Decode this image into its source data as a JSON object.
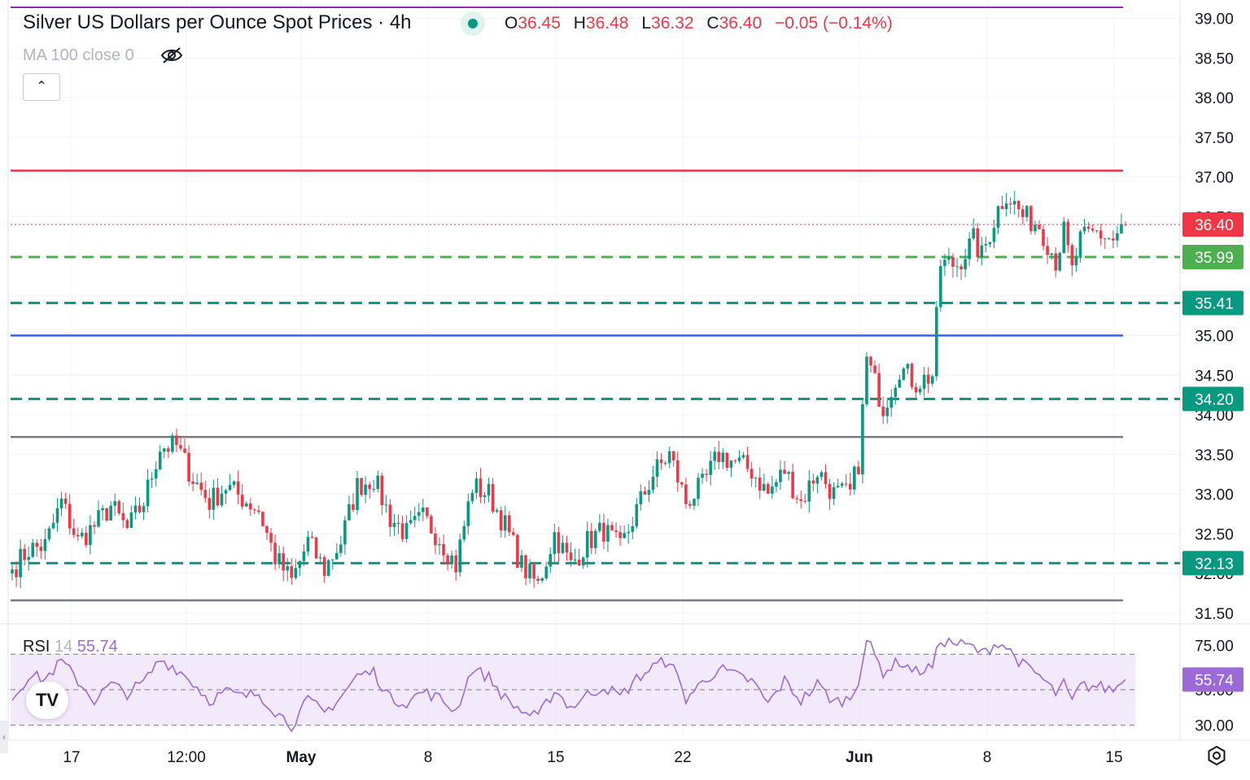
{
  "header": {
    "title": "Silver US Dollars per Ounce Spot Prices · 4h",
    "ohlc": {
      "o_label": "O",
      "o": "36.45",
      "h_label": "H",
      "h": "36.48",
      "l_label": "L",
      "l": "36.32",
      "c_label": "C",
      "c": "36.40",
      "change": "−0.05 (−0.14%)"
    },
    "indicator": "MA 100 close 0",
    "status_icon": "market-open-dot",
    "visibility_icon": "eye-off-icon",
    "collapse_icon": "chevron-up-icon"
  },
  "rsi_header": {
    "name": "RSI",
    "period": "14",
    "value": "55.74"
  },
  "footer": {
    "logo": "TV",
    "settings_icon": "gear-icon",
    "handle_icon": "chevron-left-icon"
  },
  "colors": {
    "up": "#089981",
    "down": "#f23645",
    "resistance": "#f23645",
    "pivot": "#2962ff",
    "range": "#787b86",
    "green_level": "#4caf50",
    "teal_level": "#089981",
    "top_line": "#9c27b0",
    "rsi": "#9c6ad6",
    "rsi_band": "#ede3f9",
    "last_price": "#f23645"
  },
  "chart_data": [
    {
      "type": "candlestick",
      "title": "Silver US Dollars per Ounce Spot Prices · 4h",
      "x_ticks": [
        "17",
        "12:00",
        "May",
        "8",
        "15",
        "22",
        "Jun",
        "8",
        "15"
      ],
      "y_ticks": [
        "31.50",
        "32.00",
        "32.50",
        "33.00",
        "33.50",
        "34.00",
        "34.50",
        "35.00",
        "35.50",
        "36.00",
        "36.50",
        "37.00",
        "37.50",
        "38.00",
        "38.50",
        "39.00"
      ],
      "ylim": [
        31.4,
        39.1
      ],
      "grid": true,
      "last_price": {
        "value": 36.4,
        "label": "36.40"
      },
      "horizontal_levels": [
        {
          "value": 37.08,
          "style": "solid",
          "color": "#f23645"
        },
        {
          "value": 35.99,
          "label": "35.99",
          "style": "dashed",
          "color": "#4caf50"
        },
        {
          "value": 35.41,
          "label": "35.41",
          "style": "dashed",
          "color": "#089981"
        },
        {
          "value": 35.0,
          "style": "solid",
          "color": "#2962ff"
        },
        {
          "value": 34.2,
          "label": "34.20",
          "style": "dashed",
          "color": "#089981"
        },
        {
          "value": 33.72,
          "style": "solid",
          "color": "#787b86"
        },
        {
          "value": 32.13,
          "label": "32.13",
          "style": "dashed",
          "color": "#089981"
        },
        {
          "value": 31.66,
          "style": "solid",
          "color": "#787b86"
        },
        {
          "value": 39.12,
          "style": "solid",
          "color": "#9c27b0"
        }
      ],
      "anchors": [
        [
          0,
          32.05
        ],
        [
          4,
          32.3
        ],
        [
          8,
          32.35
        ],
        [
          12,
          32.9
        ],
        [
          16,
          32.4
        ],
        [
          20,
          32.6
        ],
        [
          24,
          32.85
        ],
        [
          28,
          32.55
        ],
        [
          32,
          32.9
        ],
        [
          36,
          33.6
        ],
        [
          40,
          33.6
        ],
        [
          44,
          33.2
        ],
        [
          48,
          32.9
        ],
        [
          52,
          33.1
        ],
        [
          56,
          32.95
        ],
        [
          60,
          32.8
        ],
        [
          64,
          32.2
        ],
        [
          68,
          31.9
        ],
        [
          72,
          32.4
        ],
        [
          76,
          32.05
        ],
        [
          80,
          32.4
        ],
        [
          84,
          33.1
        ],
        [
          88,
          33.2
        ],
        [
          92,
          32.7
        ],
        [
          96,
          32.5
        ],
        [
          100,
          32.7
        ],
        [
          104,
          32.45
        ],
        [
          108,
          32.1
        ],
        [
          112,
          33.1
        ],
        [
          116,
          33.0
        ],
        [
          120,
          32.6
        ],
        [
          124,
          32.1
        ],
        [
          128,
          31.85
        ],
        [
          132,
          32.5
        ],
        [
          136,
          32.1
        ],
        [
          140,
          32.4
        ],
        [
          144,
          32.55
        ],
        [
          148,
          32.3
        ],
        [
          152,
          32.8
        ],
        [
          156,
          33.25
        ],
        [
          160,
          33.5
        ],
        [
          164,
          32.9
        ],
        [
          168,
          33.1
        ],
        [
          172,
          33.5
        ],
        [
          176,
          33.4
        ],
        [
          180,
          33.3
        ],
        [
          184,
          33.0
        ],
        [
          188,
          33.3
        ],
        [
          192,
          32.9
        ],
        [
          196,
          33.3
        ],
        [
          200,
          33.0
        ],
        [
          204,
          33.0
        ],
        [
          206,
          33.4
        ],
        [
          208,
          34.7
        ],
        [
          212,
          34.1
        ],
        [
          216,
          34.6
        ],
        [
          220,
          34.4
        ],
        [
          224,
          34.5
        ],
        [
          226,
          35.9
        ],
        [
          230,
          35.9
        ],
        [
          234,
          36.2
        ],
        [
          236,
          36.0
        ],
        [
          240,
          36.6
        ],
        [
          242,
          36.8
        ],
        [
          246,
          36.5
        ],
        [
          250,
          36.4
        ],
        [
          254,
          35.95
        ],
        [
          256,
          36.3
        ],
        [
          258,
          35.8
        ],
        [
          260,
          36.2
        ],
        [
          264,
          36.3
        ],
        [
          268,
          36.2
        ],
        [
          271,
          36.4
        ]
      ]
    },
    {
      "type": "line",
      "name": "RSI 14",
      "y_ticks": [
        "30.00",
        "50.00",
        "75.00"
      ],
      "ylim": [
        20,
        80
      ],
      "levels": [
        70,
        50,
        30
      ],
      "last_value": {
        "value": 55.74,
        "label": "55.74"
      },
      "anchors": [
        [
          0,
          45
        ],
        [
          4,
          58
        ],
        [
          8,
          56
        ],
        [
          12,
          66
        ],
        [
          16,
          55
        ],
        [
          20,
          44
        ],
        [
          24,
          53
        ],
        [
          28,
          48
        ],
        [
          32,
          54
        ],
        [
          36,
          67
        ],
        [
          40,
          62
        ],
        [
          44,
          54
        ],
        [
          48,
          44
        ],
        [
          52,
          49
        ],
        [
          56,
          46
        ],
        [
          60,
          48
        ],
        [
          64,
          38
        ],
        [
          68,
          30
        ],
        [
          72,
          44
        ],
        [
          76,
          37
        ],
        [
          80,
          46
        ],
        [
          84,
          58
        ],
        [
          88,
          60
        ],
        [
          92,
          45
        ],
        [
          96,
          43
        ],
        [
          100,
          49
        ],
        [
          104,
          45
        ],
        [
          108,
          38
        ],
        [
          112,
          62
        ],
        [
          116,
          57
        ],
        [
          120,
          45
        ],
        [
          124,
          38
        ],
        [
          128,
          34
        ],
        [
          132,
          50
        ],
        [
          136,
          40
        ],
        [
          140,
          47
        ],
        [
          144,
          52
        ],
        [
          148,
          46
        ],
        [
          152,
          56
        ],
        [
          156,
          63
        ],
        [
          160,
          67
        ],
        [
          164,
          45
        ],
        [
          168,
          54
        ],
        [
          172,
          62
        ],
        [
          176,
          58
        ],
        [
          180,
          55
        ],
        [
          184,
          42
        ],
        [
          188,
          55
        ],
        [
          192,
          44
        ],
        [
          196,
          53
        ],
        [
          200,
          43
        ],
        [
          204,
          45
        ],
        [
          206,
          56
        ],
        [
          208,
          78
        ],
        [
          212,
          60
        ],
        [
          216,
          66
        ],
        [
          220,
          60
        ],
        [
          224,
          63
        ],
        [
          226,
          78
        ],
        [
          230,
          76
        ],
        [
          234,
          74
        ],
        [
          236,
          70
        ],
        [
          240,
          77
        ],
        [
          242,
          74
        ],
        [
          246,
          64
        ],
        [
          250,
          58
        ],
        [
          254,
          48
        ],
        [
          256,
          53
        ],
        [
          258,
          43
        ],
        [
          260,
          52
        ],
        [
          264,
          52
        ],
        [
          268,
          50
        ],
        [
          271,
          55.74
        ]
      ]
    }
  ]
}
